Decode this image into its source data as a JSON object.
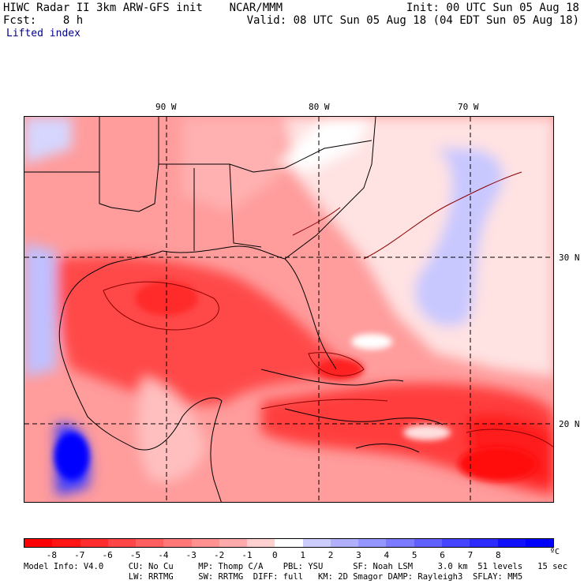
{
  "header": {
    "left_line1": "HIWC Radar II 3km ARW-GFS init    NCAR/MMM",
    "left_line2": "Fcst:    8 h",
    "right_line1": "Init: 00 UTC Sun 05 Aug 18",
    "right_line2": "Valid: 08 UTC Sun 05 Aug 18 (04 EDT Sun 05 Aug 18)",
    "field": "Lifted index"
  },
  "axes": {
    "longitudes": [
      "90 W",
      "80 W",
      "70 W"
    ],
    "latitudes": [
      "30 N",
      "20 N"
    ]
  },
  "colorbar": {
    "labels": [
      "-8",
      "-7",
      "-6",
      "-5",
      "-4",
      "-3",
      "-2",
      "-1",
      "0",
      "1",
      "2",
      "3",
      "4",
      "5",
      "6",
      "7",
      "8"
    ],
    "unit": "ºC",
    "colors": [
      "#ff0000",
      "#ff1515",
      "#ff2d2d",
      "#ff4646",
      "#ff5f5f",
      "#ff7878",
      "#ff9191",
      "#ffaaaa",
      "#ffd0d0",
      "#ffffff",
      "#ccccff",
      "#b0b0ff",
      "#9696ff",
      "#7b7bff",
      "#6060ff",
      "#4545ff",
      "#2b2bff",
      "#1010ff",
      "#0000ff"
    ]
  },
  "model_info": {
    "line1": "Model Info: V4.0     CU: No Cu     MP: Thomp C/A    PBL: YSU      SF: Noah LSM     3.0 km  51 levels   15 sec",
    "line2": "                     LW: RRTMG     SW: RRTMG  DIFF: full   KM: 2D Smagor DAMP: Rayleigh3  SFLAY: MM5"
  }
}
